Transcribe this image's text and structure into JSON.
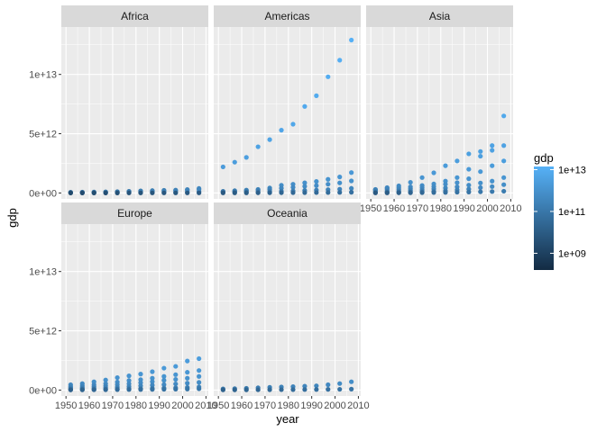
{
  "chart_data": {
    "type": "scatter",
    "xlabel": "year",
    "ylabel": "gdp",
    "xlim": [
      1948,
      2011
    ],
    "ylim": [
      -500000000000.0,
      14000000000000.0
    ],
    "x_ticks": [
      1950,
      1960,
      1970,
      1980,
      1990,
      2000,
      2010
    ],
    "x_tick_labels": [
      "1950",
      "1960",
      "1970",
      "1980",
      "1990",
      "2000",
      "2010"
    ],
    "y_ticks": [
      0,
      5000000000000.0,
      10000000000000.0
    ],
    "y_tick_labels": [
      "0e+00",
      "5e+12",
      "1e+13"
    ],
    "grid": true,
    "years": [
      1952,
      1957,
      1962,
      1967,
      1972,
      1977,
      1982,
      1987,
      1992,
      1997,
      2002,
      2007
    ],
    "facets": [
      {
        "name": "Africa",
        "series": [
          {
            "name": "",
            "values": [
              15000000000.0,
              18000000000.0,
              22000000000.0,
              28000000000.0,
              35000000000.0,
              45000000000.0,
              55000000000.0,
              60000000000.0,
              65000000000.0,
              75000000000.0,
              90000000000.0,
              120000000000.0
            ]
          },
          {
            "name": "",
            "values": [
              45000000000.0,
              55000000000.0,
              65000000000.0,
              80000000000.0,
              100000000000.0,
              130000000000.0,
              160000000000.0,
              170000000000.0,
              180000000000.0,
              200000000000.0,
              240000000000.0,
              300000000000.0
            ]
          },
          {
            "name": "",
            "values": [
              60000000000.0,
              70000000000.0,
              80000000000.0,
              90000000000.0,
              110000000000.0,
              140000000000.0,
              180000000000.0,
              200000000000.0,
              220000000000.0,
              240000000000.0,
              290000000000.0,
              380000000000.0
            ]
          },
          {
            "name": "",
            "values": [
              2000000000.0,
              2500000000.0,
              3000000000.0,
              3500000000.0,
              4200000000.0,
              5000000000.0,
              5500000000.0,
              6000000000.0,
              6500000000.0,
              7000000000.0,
              8000000000.0,
              9000000000.0
            ]
          }
        ]
      },
      {
        "name": "Americas",
        "series": [
          {
            "name": "",
            "values": [
              2200000000000.0,
              2600000000000.0,
              3000000000000.0,
              3900000000000.0,
              4500000000000.0,
              5300000000000.0,
              5800000000000.0,
              7300000000000.0,
              8200000000000.0,
              9800000000000.0,
              11200000000000.0,
              12900000000000.0
            ]
          },
          {
            "name": "",
            "values": [
              140000000000.0,
              190000000000.0,
              240000000000.0,
              300000000000.0,
              420000000000.0,
              650000000000.0,
              740000000000.0,
              860000000000.0,
              970000000000.0,
              1150000000000.0,
              1350000000000.0,
              1720000000000.0
            ]
          },
          {
            "name": "",
            "values": [
              120000000000.0,
              150000000000.0,
              180000000000.0,
              230000000000.0,
              290000000000.0,
              400000000000.0,
              480000000000.0,
              560000000000.0,
              620000000000.0,
              740000000000.0,
              850000000000.0,
              1020000000000.0
            ]
          },
          {
            "name": "",
            "values": [
              50000000000.0,
              65000000000.0,
              75000000000.0,
              95000000000.0,
              120000000000.0,
              150000000000.0,
              180000000000.0,
              210000000000.0,
              240000000000.0,
              280000000000.0,
              320000000000.0,
              390000000000.0
            ]
          },
          {
            "name": "",
            "values": [
              8000000000.0,
              10000000000.0,
              12000000000.0,
              15000000000.0,
              19000000000.0,
              24000000000.0,
              28000000000.0,
              31000000000.0,
              35000000000.0,
              42000000000.0,
              48000000000.0,
              58000000000.0
            ]
          }
        ]
      },
      {
        "name": "Asia",
        "series": [
          {
            "name": "",
            "values": [
              280000000000.0,
              450000000000.0,
              600000000000.0,
              900000000000.0,
              1300000000000.0,
              1700000000000.0,
              2300000000000.0,
              2700000000000.0,
              3300000000000.0,
              3500000000000.0,
              3600000000000.0,
              4000000000000.0
            ]
          },
          {
            "name": "",
            "values": [
              300000000000.0,
              400000000000.0,
              460000000000.0,
              520000000000.0,
              630000000000.0,
              760000000000.0,
              1000000000000.0,
              1300000000000.0,
              2000000000000.0,
              3100000000000.0,
              4000000000000.0,
              6500000000000.0
            ]
          },
          {
            "name": "",
            "values": [
              230000000000.0,
              270000000000.0,
              310000000000.0,
              360000000000.0,
              450000000000.0,
              540000000000.0,
              740000000000.0,
              870000000000.0,
              1200000000000.0,
              1800000000000.0,
              2300000000000.0,
              2700000000000.0
            ]
          },
          {
            "name": "",
            "values": [
              110000000000.0,
              130000000000.0,
              160000000000.0,
              210000000000.0,
              260000000000.0,
              340000000000.0,
              420000000000.0,
              520000000000.0,
              660000000000.0,
              840000000000.0,
              1000000000000.0,
              1300000000000.0
            ]
          },
          {
            "name": "",
            "values": [
              30000000000.0,
              40000000000.0,
              55000000000.0,
              75000000000.0,
              100000000000.0,
              140000000000.0,
              190000000000.0,
              260000000000.0,
              330000000000.0,
              450000000000.0,
              540000000000.0,
              700000000000.0
            ]
          },
          {
            "name": "",
            "values": [
              8000000000.0,
              11000000000.0,
              15000000000.0,
              21000000000.0,
              29000000000.0,
              39000000000.0,
              50000000000.0,
              65000000000.0,
              80000000000.0,
              100000000000.0,
              120000000000.0,
              150000000000.0
            ]
          }
        ]
      },
      {
        "name": "Europe",
        "series": [
          {
            "name": "",
            "values": [
              450000000000.0,
              550000000000.0,
              700000000000.0,
              850000000000.0,
              1050000000000.0,
              1200000000000.0,
              1350000000000.0,
              1550000000000.0,
              1850000000000.0,
              2000000000000.0,
              2450000000000.0,
              2650000000000.0
            ]
          },
          {
            "name": "",
            "values": [
              300000000000.0,
              380000000000.0,
              450000000000.0,
              550000000000.0,
              680000000000.0,
              800000000000.0,
              880000000000.0,
              1000000000000.0,
              1150000000000.0,
              1300000000000.0,
              1500000000000.0,
              1650000000000.0
            ]
          },
          {
            "name": "",
            "values": [
              200000000000.0,
              240000000000.0,
              290000000000.0,
              360000000000.0,
              460000000000.0,
              530000000000.0,
              620000000000.0,
              710000000000.0,
              820000000000.0,
              900000000000.0,
              1000000000000.0,
              1150000000000.0
            ]
          },
          {
            "name": "",
            "values": [
              100000000000.0,
              130000000000.0,
              160000000000.0,
              200000000000.0,
              250000000000.0,
              300000000000.0,
              360000000000.0,
              410000000000.0,
              460000000000.0,
              520000000000.0,
              580000000000.0,
              650000000000.0
            ]
          },
          {
            "name": "",
            "values": [
              40000000000.0,
              50000000000.0,
              60000000000.0,
              75000000000.0,
              90000000000.0,
              110000000000.0,
              130000000000.0,
              150000000000.0,
              170000000000.0,
              190000000000.0,
              220000000000.0,
              260000000000.0
            ]
          },
          {
            "name": "",
            "values": [
              15000000000.0,
              20000000000.0,
              25000000000.0,
              30000000000.0,
              38000000000.0,
              45000000000.0,
              52000000000.0,
              60000000000.0,
              65000000000.0,
              75000000000.0,
              90000000000.0,
              110000000000.0
            ]
          }
        ]
      },
      {
        "name": "Oceania",
        "series": [
          {
            "name": "",
            "values": [
              100000000000.0,
              120000000000.0,
              150000000000.0,
              190000000000.0,
              230000000000.0,
              260000000000.0,
              290000000000.0,
              330000000000.0,
              360000000000.0,
              450000000000.0,
              550000000000.0,
              700000000000.0
            ]
          },
          {
            "name": "",
            "values": [
              16000000000.0,
              19000000000.0,
              23000000000.0,
              26000000000.0,
              33000000000.0,
              35000000000.0,
              40000000000.0,
              45000000000.0,
              48000000000.0,
              58000000000.0,
              66000000000.0,
              80000000000.0
            ]
          }
        ]
      }
    ],
    "legend": {
      "title": "gdp",
      "placement": "right",
      "color_low": "#132B43",
      "color_high": "#56B1F7",
      "log_min": 8.2,
      "log_max": 13.15,
      "breaks": [
        9,
        11,
        13
      ],
      "break_labels": [
        "1e+09",
        "1e+11",
        "1e+13"
      ]
    }
  }
}
